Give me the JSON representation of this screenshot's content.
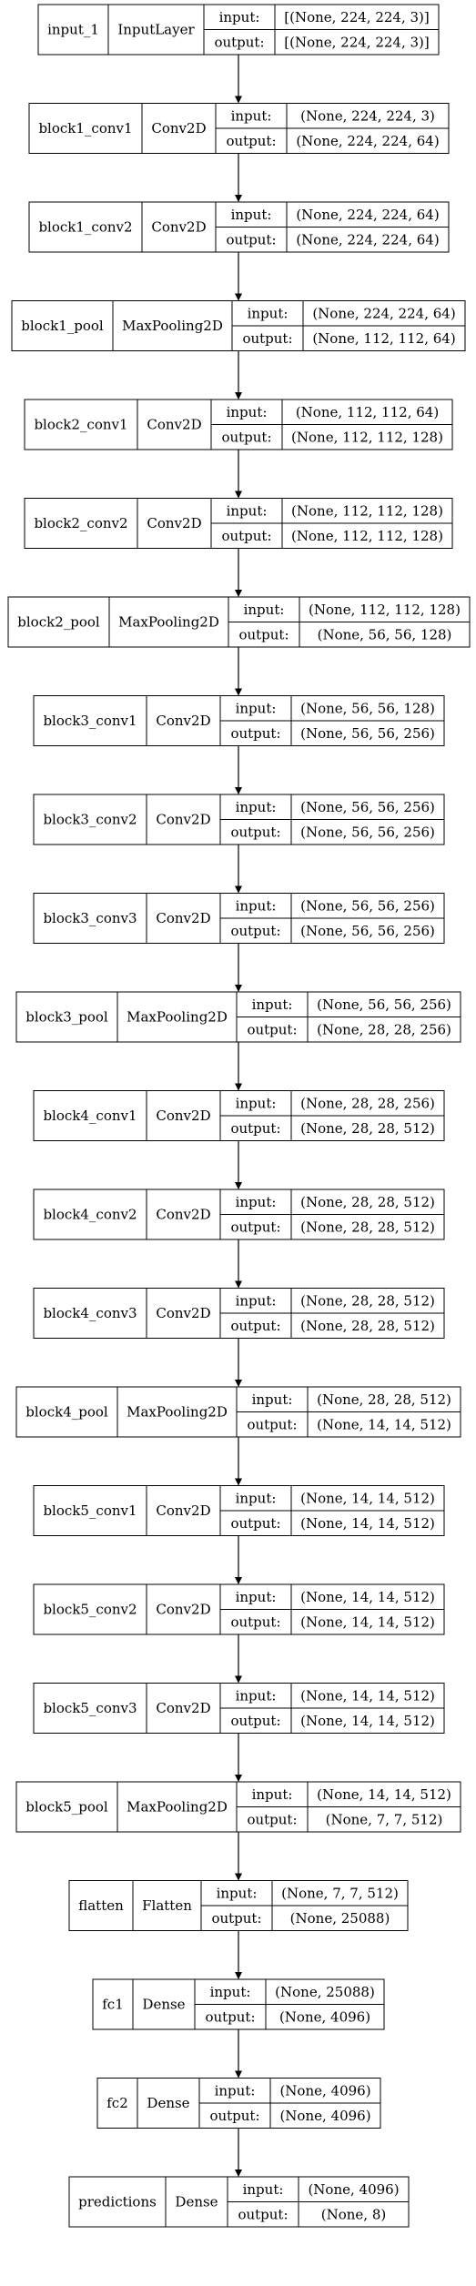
{
  "title": "",
  "colors": {
    "background": "#ffffff",
    "stroke": "#000000",
    "text": "#000000"
  },
  "nodes": [
    {
      "id": "input_1",
      "name": "input_1",
      "type": "InputLayer",
      "input_label": "input:",
      "output_label": "output:",
      "input_shape": "[(None, 224, 224, 3)]",
      "output_shape": "[(None, 224, 224, 3)]"
    },
    {
      "id": "block1_conv1",
      "name": "block1_conv1",
      "type": "Conv2D",
      "input_label": "input:",
      "output_label": "output:",
      "input_shape": "(None, 224, 224, 3)",
      "output_shape": "(None, 224, 224, 64)"
    },
    {
      "id": "block1_conv2",
      "name": "block1_conv2",
      "type": "Conv2D",
      "input_label": "input:",
      "output_label": "output:",
      "input_shape": "(None, 224, 224, 64)",
      "output_shape": "(None, 224, 224, 64)"
    },
    {
      "id": "block1_pool",
      "name": "block1_pool",
      "type": "MaxPooling2D",
      "input_label": "input:",
      "output_label": "output:",
      "input_shape": "(None, 224, 224, 64)",
      "output_shape": "(None, 112, 112, 64)"
    },
    {
      "id": "block2_conv1",
      "name": "block2_conv1",
      "type": "Conv2D",
      "input_label": "input:",
      "output_label": "output:",
      "input_shape": "(None, 112, 112, 64)",
      "output_shape": "(None, 112, 112, 128)"
    },
    {
      "id": "block2_conv2",
      "name": "block2_conv2",
      "type": "Conv2D",
      "input_label": "input:",
      "output_label": "output:",
      "input_shape": "(None, 112, 112, 128)",
      "output_shape": "(None, 112, 112, 128)"
    },
    {
      "id": "block2_pool",
      "name": "block2_pool",
      "type": "MaxPooling2D",
      "input_label": "input:",
      "output_label": "output:",
      "input_shape": "(None, 112, 112, 128)",
      "output_shape": "(None, 56, 56, 128)"
    },
    {
      "id": "block3_conv1",
      "name": "block3_conv1",
      "type": "Conv2D",
      "input_label": "input:",
      "output_label": "output:",
      "input_shape": "(None, 56, 56, 128)",
      "output_shape": "(None, 56, 56, 256)"
    },
    {
      "id": "block3_conv2",
      "name": "block3_conv2",
      "type": "Conv2D",
      "input_label": "input:",
      "output_label": "output:",
      "input_shape": "(None, 56, 56, 256)",
      "output_shape": "(None, 56, 56, 256)"
    },
    {
      "id": "block3_conv3",
      "name": "block3_conv3",
      "type": "Conv2D",
      "input_label": "input:",
      "output_label": "output:",
      "input_shape": "(None, 56, 56, 256)",
      "output_shape": "(None, 56, 56, 256)"
    },
    {
      "id": "block3_pool",
      "name": "block3_pool",
      "type": "MaxPooling2D",
      "input_label": "input:",
      "output_label": "output:",
      "input_shape": "(None, 56, 56, 256)",
      "output_shape": "(None, 28, 28, 256)"
    },
    {
      "id": "block4_conv1",
      "name": "block4_conv1",
      "type": "Conv2D",
      "input_label": "input:",
      "output_label": "output:",
      "input_shape": "(None, 28, 28, 256)",
      "output_shape": "(None, 28, 28, 512)"
    },
    {
      "id": "block4_conv2",
      "name": "block4_conv2",
      "type": "Conv2D",
      "input_label": "input:",
      "output_label": "output:",
      "input_shape": "(None, 28, 28, 512)",
      "output_shape": "(None, 28, 28, 512)"
    },
    {
      "id": "block4_conv3",
      "name": "block4_conv3",
      "type": "Conv2D",
      "input_label": "input:",
      "output_label": "output:",
      "input_shape": "(None, 28, 28, 512)",
      "output_shape": "(None, 28, 28, 512)"
    },
    {
      "id": "block4_pool",
      "name": "block4_pool",
      "type": "MaxPooling2D",
      "input_label": "input:",
      "output_label": "output:",
      "input_shape": "(None, 28, 28, 512)",
      "output_shape": "(None, 14, 14, 512)"
    },
    {
      "id": "block5_conv1",
      "name": "block5_conv1",
      "type": "Conv2D",
      "input_label": "input:",
      "output_label": "output:",
      "input_shape": "(None, 14, 14, 512)",
      "output_shape": "(None, 14, 14, 512)"
    },
    {
      "id": "block5_conv2",
      "name": "block5_conv2",
      "type": "Conv2D",
      "input_label": "input:",
      "output_label": "output:",
      "input_shape": "(None, 14, 14, 512)",
      "output_shape": "(None, 14, 14, 512)"
    },
    {
      "id": "block5_conv3",
      "name": "block5_conv3",
      "type": "Conv2D",
      "input_label": "input:",
      "output_label": "output:",
      "input_shape": "(None, 14, 14, 512)",
      "output_shape": "(None, 14, 14, 512)"
    },
    {
      "id": "block5_pool",
      "name": "block5_pool",
      "type": "MaxPooling2D",
      "input_label": "input:",
      "output_label": "output:",
      "input_shape": "(None, 14, 14, 512)",
      "output_shape": "(None, 7, 7, 512)"
    },
    {
      "id": "flatten",
      "name": "flatten",
      "type": "Flatten",
      "input_label": "input:",
      "output_label": "output:",
      "input_shape": "(None, 7, 7, 512)",
      "output_shape": "(None, 25088)"
    },
    {
      "id": "fc1",
      "name": "fc1",
      "type": "Dense",
      "input_label": "input:",
      "output_label": "output:",
      "input_shape": "(None, 25088)",
      "output_shape": "(None, 4096)"
    },
    {
      "id": "fc2",
      "name": "fc2",
      "type": "Dense",
      "input_label": "input:",
      "output_label": "output:",
      "input_shape": "(None, 4096)",
      "output_shape": "(None, 4096)"
    },
    {
      "id": "predictions",
      "name": "predictions",
      "type": "Dense",
      "input_label": "input:",
      "output_label": "output:",
      "input_shape": "(None, 4096)",
      "output_shape": "(None, 8)"
    }
  ],
  "edges": [
    {
      "from": "input_1",
      "to": "block1_conv1"
    },
    {
      "from": "block1_conv1",
      "to": "block1_conv2"
    },
    {
      "from": "block1_conv2",
      "to": "block1_pool"
    },
    {
      "from": "block1_pool",
      "to": "block2_conv1"
    },
    {
      "from": "block2_conv1",
      "to": "block2_conv2"
    },
    {
      "from": "block2_conv2",
      "to": "block2_pool"
    },
    {
      "from": "block2_pool",
      "to": "block3_conv1"
    },
    {
      "from": "block3_conv1",
      "to": "block3_conv2"
    },
    {
      "from": "block3_conv2",
      "to": "block3_conv3"
    },
    {
      "from": "block3_conv3",
      "to": "block3_pool"
    },
    {
      "from": "block3_pool",
      "to": "block4_conv1"
    },
    {
      "from": "block4_conv1",
      "to": "block4_conv2"
    },
    {
      "from": "block4_conv2",
      "to": "block4_conv3"
    },
    {
      "from": "block4_conv3",
      "to": "block4_pool"
    },
    {
      "from": "block4_pool",
      "to": "block5_conv1"
    },
    {
      "from": "block5_conv1",
      "to": "block5_conv2"
    },
    {
      "from": "block5_conv2",
      "to": "block5_conv3"
    },
    {
      "from": "block5_conv3",
      "to": "block5_pool"
    },
    {
      "from": "block5_pool",
      "to": "flatten"
    },
    {
      "from": "flatten",
      "to": "fc1"
    },
    {
      "from": "fc1",
      "to": "fc2"
    },
    {
      "from": "fc2",
      "to": "predictions"
    }
  ]
}
